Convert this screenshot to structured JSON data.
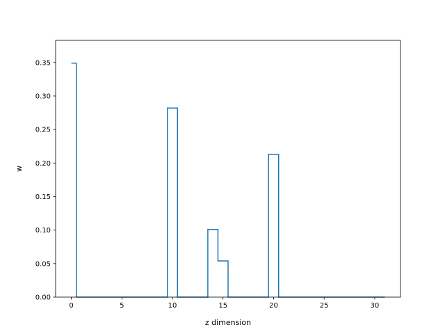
{
  "chart_data": {
    "type": "line",
    "drawstyle": "steps-mid",
    "xlabel": "z dimension",
    "ylabel": "w",
    "xlim": [
      -1.55,
      32.55
    ],
    "ylim": [
      0.0,
      0.383
    ],
    "xticks": [
      0,
      5,
      10,
      15,
      20,
      25,
      30
    ],
    "yticks": [
      0.0,
      0.05,
      0.1,
      0.15,
      0.2,
      0.25,
      0.3,
      0.35
    ],
    "grid": false,
    "series": [
      {
        "color": "#1f77b4",
        "x": [
          0,
          1,
          2,
          3,
          4,
          5,
          6,
          7,
          8,
          9,
          10,
          11,
          12,
          13,
          14,
          15,
          16,
          17,
          18,
          19,
          20,
          21,
          22,
          23,
          24,
          25,
          26,
          27,
          28,
          29,
          30,
          31
        ],
        "y": [
          0.349,
          0,
          0,
          0,
          0,
          0,
          0,
          0,
          0,
          0,
          0.282,
          0,
          0,
          0,
          0.101,
          0.054,
          0,
          0,
          0,
          0,
          0.213,
          0,
          0,
          0,
          0,
          0,
          0,
          0,
          0,
          0,
          0,
          0
        ]
      }
    ]
  }
}
